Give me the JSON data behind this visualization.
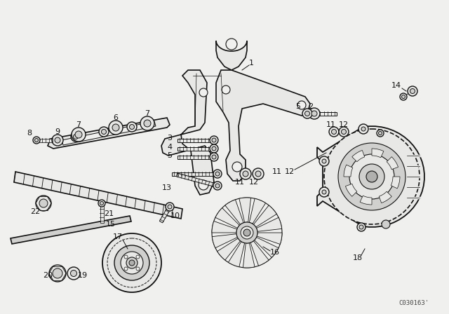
{
  "bg_color": "#f0f0ee",
  "line_color": "#111111",
  "fill_light": "#e8e8e6",
  "fill_mid": "#d0d0ce",
  "fill_dark": "#b0b0ae",
  "watermark": "C030163'",
  "figsize": [
    6.4,
    4.48
  ],
  "dpi": 100
}
